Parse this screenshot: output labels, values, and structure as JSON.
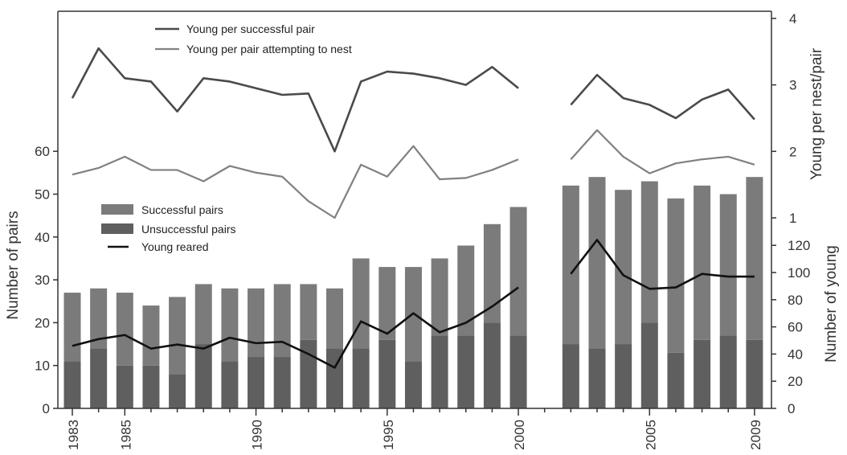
{
  "chart_data": {
    "type": "bar",
    "x": [
      1983,
      1984,
      1985,
      1986,
      1987,
      1988,
      1989,
      1990,
      1991,
      1992,
      1993,
      1994,
      1995,
      1996,
      1997,
      1998,
      1999,
      2000,
      2002,
      2003,
      2004,
      2005,
      2006,
      2007,
      2008,
      2009
    ],
    "x_tick_labels": [
      "1983",
      "1985",
      "1990",
      "1995",
      "2000",
      "2005",
      "2009"
    ],
    "series": [
      {
        "name": "Successful pairs",
        "kind": "bar",
        "axis": "pairs",
        "values": [
          16,
          14,
          17,
          14,
          18,
          14,
          17,
          16,
          17,
          13,
          14,
          21,
          17,
          22,
          18,
          21,
          23,
          30,
          37,
          40,
          36,
          33,
          36,
          36,
          33,
          38
        ]
      },
      {
        "name": "Unsuccessful pairs",
        "kind": "bar",
        "axis": "pairs",
        "values": [
          11,
          14,
          10,
          10,
          8,
          15,
          11,
          12,
          12,
          16,
          14,
          14,
          16,
          11,
          17,
          17,
          20,
          17,
          15,
          14,
          15,
          20,
          13,
          16,
          17,
          16
        ]
      },
      {
        "name": "Young reared",
        "kind": "line",
        "axis": "young",
        "values": [
          46,
          51,
          54,
          44,
          47,
          44,
          52,
          48,
          49,
          40,
          30,
          64,
          55,
          70,
          56,
          63,
          75,
          89,
          99,
          124,
          98,
          88,
          89,
          99,
          97,
          97
        ]
      },
      {
        "name": "Young per successful pair",
        "kind": "line",
        "axis": "young_per_pair",
        "values": [
          2.8,
          3.55,
          3.1,
          3.05,
          2.6,
          3.1,
          3.05,
          2.95,
          2.85,
          2.87,
          2.0,
          3.05,
          3.2,
          3.17,
          3.1,
          3.0,
          3.27,
          2.95,
          2.7,
          3.15,
          2.8,
          2.7,
          2.5,
          2.78,
          2.93,
          2.48
        ]
      },
      {
        "name": "Young per pair attempting to nest",
        "kind": "line",
        "axis": "young_per_pair",
        "values": [
          1.65,
          1.75,
          1.92,
          1.72,
          1.72,
          1.55,
          1.78,
          1.68,
          1.62,
          1.25,
          1.0,
          1.8,
          1.62,
          2.08,
          1.58,
          1.6,
          1.72,
          1.88,
          1.88,
          2.32,
          1.92,
          1.67,
          1.82,
          1.88,
          1.92,
          1.8
        ]
      }
    ],
    "axes": {
      "pairs": {
        "label": "Number of pairs",
        "range": [
          0,
          60
        ],
        "ticks": [
          0,
          10,
          20,
          30,
          40,
          50,
          60
        ]
      },
      "young": {
        "label": "Number of young",
        "range": [
          0,
          120
        ],
        "ticks": [
          0,
          20,
          40,
          60,
          80,
          100,
          120
        ]
      },
      "young_per_pair": {
        "label": "Young per nest/pair",
        "range": [
          0,
          4
        ],
        "ticks": [
          1,
          2,
          3,
          4
        ]
      }
    },
    "legend_top": [
      "Young per successful pair",
      "Young per pair attempting to nest"
    ],
    "legend_mid": [
      "Successful pairs",
      "Unsuccessful pairs",
      "Young reared"
    ],
    "colors": {
      "successful_pairs": "#7b7b7b",
      "unsuccessful_pairs": "#5f5f5f",
      "young_reared": "#111111",
      "young_per_successful_pair": "#4a4a4a",
      "young_per_pair_attempting": "#808080",
      "axes": "#333333"
    }
  }
}
